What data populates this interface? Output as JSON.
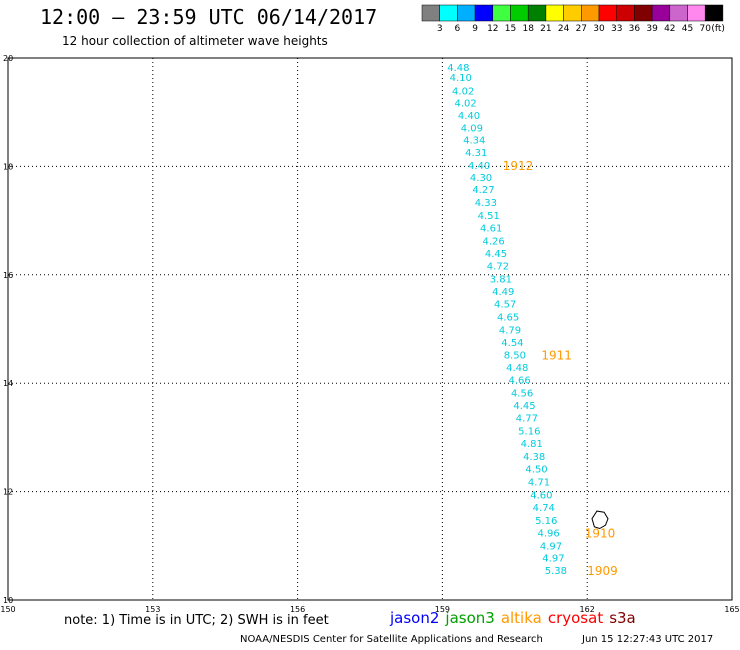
{
  "header": {
    "title": "12:00 – 23:59 UTC 06/14/2017",
    "subtitle": "12 hour collection of altimeter wave heights"
  },
  "legend": {
    "unit": "(ft)",
    "bins": [
      {
        "label": "3",
        "color": "#808080"
      },
      {
        "label": "6",
        "color": "#00ffff"
      },
      {
        "label": "9",
        "color": "#00b0ff"
      },
      {
        "label": "12",
        "color": "#0000ff"
      },
      {
        "label": "15",
        "color": "#40ff40"
      },
      {
        "label": "18",
        "color": "#00cc00"
      },
      {
        "label": "21",
        "color": "#008000"
      },
      {
        "label": "24",
        "color": "#ffff00"
      },
      {
        "label": "27",
        "color": "#ffcc00"
      },
      {
        "label": "30",
        "color": "#ff9900"
      },
      {
        "label": "33",
        "color": "#ff0000"
      },
      {
        "label": "36",
        "color": "#cc0000"
      },
      {
        "label": "39",
        "color": "#800000"
      },
      {
        "label": "42",
        "color": "#990099"
      },
      {
        "label": "45",
        "color": "#cc66cc"
      },
      {
        "label": "70",
        "color": "#ff88ee"
      },
      {
        "label": "",
        "color": "#000000"
      }
    ]
  },
  "footer": {
    "note": "note: 1) Time is in UTC; 2) SWH is in feet",
    "credit": "NOAA/NESDIS Center for Satellite Applications and Research",
    "timestamp": "Jun 15 12:27:43 UTC 2017",
    "satellites": [
      {
        "name": "jason2",
        "color": "#0000ff"
      },
      {
        "name": "jason3",
        "color": "#00a000"
      },
      {
        "name": "altika",
        "color": "#ff9900"
      },
      {
        "name": "cryosat",
        "color": "#ff0000"
      },
      {
        "name": "s3a",
        "color": "#800000"
      }
    ]
  },
  "chart_data": {
    "type": "scatter",
    "xlim": [
      150,
      165
    ],
    "ylim": [
      10,
      20
    ],
    "x_ticks": [
      "150",
      "153",
      "156",
      "159",
      "162",
      "165"
    ],
    "y_ticks": [
      "10",
      "12",
      "14",
      "16",
      "18",
      "20"
    ],
    "grid": true,
    "point_color": "#00ccdd",
    "time_color": "#ff9900",
    "points": [
      {
        "lon": 159.1,
        "lat": 19.83,
        "value": "4.48"
      },
      {
        "lon": 159.15,
        "lat": 19.65,
        "value": "4.10"
      },
      {
        "lon": 159.2,
        "lat": 19.4,
        "value": "4.02"
      },
      {
        "lon": 159.25,
        "lat": 19.18,
        "value": "4.02"
      },
      {
        "lon": 159.32,
        "lat": 18.95,
        "value": "4.40"
      },
      {
        "lon": 159.38,
        "lat": 18.72,
        "value": "4.09"
      },
      {
        "lon": 159.43,
        "lat": 18.5,
        "value": "4.34"
      },
      {
        "lon": 159.47,
        "lat": 18.27,
        "value": "4.31"
      },
      {
        "lon": 159.53,
        "lat": 18.03,
        "value": "4.40"
      },
      {
        "lon": 159.57,
        "lat": 17.8,
        "value": "4.30"
      },
      {
        "lon": 159.62,
        "lat": 17.58,
        "value": "4.27"
      },
      {
        "lon": 159.67,
        "lat": 17.34,
        "value": "4.33"
      },
      {
        "lon": 159.73,
        "lat": 17.1,
        "value": "4.51"
      },
      {
        "lon": 159.78,
        "lat": 16.87,
        "value": "4.61"
      },
      {
        "lon": 159.83,
        "lat": 16.63,
        "value": "4.26"
      },
      {
        "lon": 159.88,
        "lat": 16.4,
        "value": "4.45"
      },
      {
        "lon": 159.92,
        "lat": 16.17,
        "value": "4.72"
      },
      {
        "lon": 159.98,
        "lat": 15.93,
        "value": "3.81"
      },
      {
        "lon": 160.03,
        "lat": 15.7,
        "value": "4.49"
      },
      {
        "lon": 160.07,
        "lat": 15.47,
        "value": "4.57"
      },
      {
        "lon": 160.13,
        "lat": 15.23,
        "value": "4.65"
      },
      {
        "lon": 160.17,
        "lat": 14.99,
        "value": "4.79"
      },
      {
        "lon": 160.22,
        "lat": 14.76,
        "value": "4.54"
      },
      {
        "lon": 160.27,
        "lat": 14.53,
        "value": "8.50"
      },
      {
        "lon": 160.32,
        "lat": 14.3,
        "value": "4.48"
      },
      {
        "lon": 160.37,
        "lat": 14.07,
        "value": "4.66"
      },
      {
        "lon": 160.42,
        "lat": 13.83,
        "value": "4.56"
      },
      {
        "lon": 160.47,
        "lat": 13.6,
        "value": "4.45"
      },
      {
        "lon": 160.52,
        "lat": 13.37,
        "value": "4.77"
      },
      {
        "lon": 160.57,
        "lat": 13.13,
        "value": "5.16"
      },
      {
        "lon": 160.62,
        "lat": 12.9,
        "value": "4.81"
      },
      {
        "lon": 160.67,
        "lat": 12.66,
        "value": "4.38"
      },
      {
        "lon": 160.72,
        "lat": 12.43,
        "value": "4.50"
      },
      {
        "lon": 160.77,
        "lat": 12.19,
        "value": "4.71"
      },
      {
        "lon": 160.82,
        "lat": 11.95,
        "value": "4.60"
      },
      {
        "lon": 160.87,
        "lat": 11.72,
        "value": "4.74"
      },
      {
        "lon": 160.92,
        "lat": 11.48,
        "value": "5.16"
      },
      {
        "lon": 160.97,
        "lat": 11.25,
        "value": "4.96"
      },
      {
        "lon": 161.02,
        "lat": 11.01,
        "value": "4.97"
      },
      {
        "lon": 161.07,
        "lat": 10.78,
        "value": "4.97"
      },
      {
        "lon": 161.12,
        "lat": 10.55,
        "value": "5.38"
      }
    ],
    "time_labels": [
      {
        "lon": 160.25,
        "lat": 18.03,
        "text": "1912"
      },
      {
        "lon": 161.05,
        "lat": 14.53,
        "text": "1911"
      },
      {
        "lon": 161.95,
        "lat": 11.25,
        "text": "1910"
      },
      {
        "lon": 162.0,
        "lat": 10.55,
        "text": "1909"
      }
    ],
    "island": [
      [
        162.15,
        11.35
      ],
      [
        162.1,
        11.5
      ],
      [
        162.2,
        11.64
      ],
      [
        162.35,
        11.62
      ],
      [
        162.43,
        11.5
      ],
      [
        162.38,
        11.38
      ],
      [
        162.26,
        11.32
      ],
      [
        162.15,
        11.35
      ]
    ]
  }
}
